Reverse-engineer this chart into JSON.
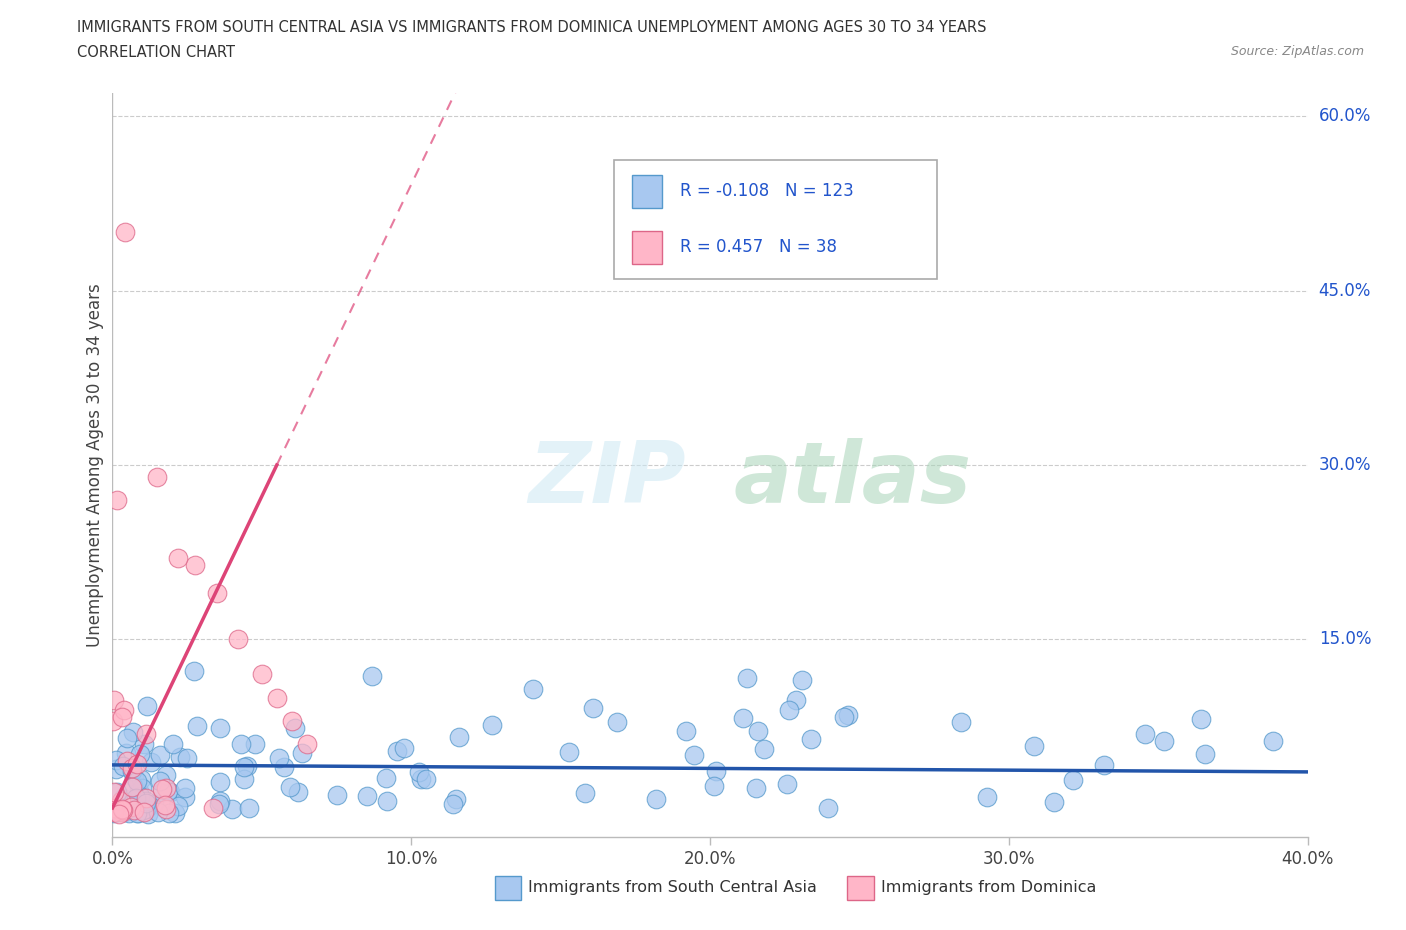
{
  "title_line1": "IMMIGRANTS FROM SOUTH CENTRAL ASIA VS IMMIGRANTS FROM DOMINICA UNEMPLOYMENT AMONG AGES 30 TO 34 YEARS",
  "title_line2": "CORRELATION CHART",
  "source_text": "Source: ZipAtlas.com",
  "ylabel": "Unemployment Among Ages 30 to 34 years",
  "xlim": [
    0.0,
    0.4
  ],
  "ylim": [
    -0.02,
    0.62
  ],
  "ylim_display": [
    0.0,
    0.6
  ],
  "xtick_labels": [
    "0.0%",
    "10.0%",
    "20.0%",
    "30.0%",
    "40.0%"
  ],
  "xtick_values": [
    0.0,
    0.1,
    0.2,
    0.3,
    0.4
  ],
  "ytick_labels": [
    "15.0%",
    "30.0%",
    "45.0%",
    "60.0%"
  ],
  "ytick_values": [
    0.15,
    0.3,
    0.45,
    0.6
  ],
  "series_blue": {
    "label": "Immigrants from South Central Asia",
    "color": "#a8c8f0",
    "edge_color": "#5599cc",
    "R": -0.108,
    "N": 123,
    "line_color": "#2255aa"
  },
  "series_pink": {
    "label": "Immigrants from Dominica",
    "color": "#ffb6c8",
    "edge_color": "#dd6688",
    "R": 0.457,
    "N": 38,
    "line_color": "#dd4477",
    "line_solid_end": 0.055
  },
  "watermark_zip": "ZIP",
  "watermark_atlas": "atlas",
  "legend_R_color": "#2255cc",
  "grid_color": "#cccccc",
  "background_color": "#ffffff"
}
